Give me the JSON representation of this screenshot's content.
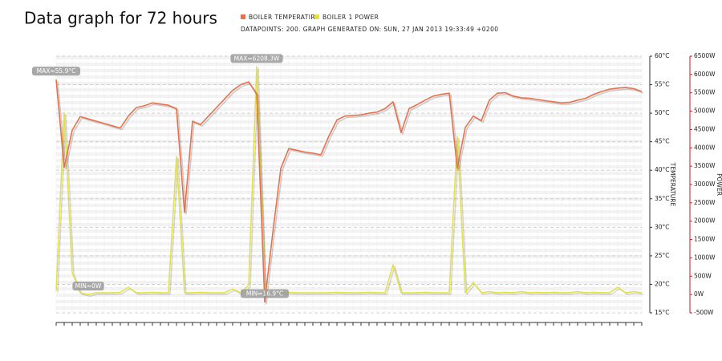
{
  "chart_data": {
    "type": "line",
    "title": "Data graph for 72 hours",
    "subtitle": "DATAPOINTS: 200. GRAPH GENERATED ON: SUN, 27 JAN 2013 19:33:49 +0200",
    "y_label": "TEMPERATURE",
    "y2_label": "POWER",
    "ylim": [
      15,
      60
    ],
    "yticks": [
      {
        "value": 15,
        "label": "15°C"
      },
      {
        "value": 20,
        "label": "20°C"
      },
      {
        "value": 25,
        "label": "25°C"
      },
      {
        "value": 30,
        "label": "30°C"
      },
      {
        "value": 35,
        "label": "35°C"
      },
      {
        "value": 40,
        "label": "40°C"
      },
      {
        "value": 45,
        "label": "45°C"
      },
      {
        "value": 50,
        "label": "50°C"
      },
      {
        "value": 55,
        "label": "55°C"
      },
      {
        "value": 60,
        "label": "60°C"
      }
    ],
    "y2lim": [
      -500,
      6500
    ],
    "y2ticks": [
      {
        "value": -500,
        "label": "-500W"
      },
      {
        "value": 0,
        "label": "0W"
      },
      {
        "value": 500,
        "label": "500W"
      },
      {
        "value": 1000,
        "label": "1000W"
      },
      {
        "value": 1500,
        "label": "1500W"
      },
      {
        "value": 2000,
        "label": "2000W"
      },
      {
        "value": 2500,
        "label": "2500W"
      },
      {
        "value": 3000,
        "label": "3000W"
      },
      {
        "value": 3500,
        "label": "3500W"
      },
      {
        "value": 4000,
        "label": "4000W"
      },
      {
        "value": 4500,
        "label": "4500W"
      },
      {
        "value": 5000,
        "label": "5000W"
      },
      {
        "value": 5500,
        "label": "5500W"
      },
      {
        "value": 6000,
        "label": "6000W"
      },
      {
        "value": 6500,
        "label": "6500W"
      }
    ],
    "grid": true,
    "series": [
      {
        "name": "BOILER TEMPERATIRE",
        "color": "#e8704a",
        "axis": "y",
        "values": [
          55.9,
          40.5,
          47,
          49.4,
          49,
          48.6,
          48.2,
          47.8,
          47.4,
          49.5,
          51,
          51.3,
          51.8,
          51.6,
          51.4,
          50.8,
          32.6,
          48.6,
          48,
          49.5,
          51,
          52.5,
          54,
          55,
          55.5,
          53.3,
          16.9,
          29,
          40.3,
          43.8,
          43.5,
          43.2,
          43,
          42.7,
          46,
          48.8,
          49.5,
          49.6,
          49.7,
          50,
          50.2,
          50.8,
          52,
          46.6,
          50.8,
          51.5,
          52.3,
          53,
          53.3,
          53.5,
          40.3,
          47.5,
          49.5,
          48.7,
          52.3,
          53.5,
          53.6,
          53,
          52.7,
          52.6,
          52.4,
          52.2,
          52,
          51.8,
          51.9,
          52.3,
          52.6,
          53.3,
          53.8,
          54.2,
          54.4,
          54.5,
          54.3,
          53.8
        ]
      },
      {
        "name": "BOILER 1 POWER",
        "color": "#e3e04a",
        "axis": "y2",
        "values": [
          100,
          4950,
          600,
          50,
          0,
          50,
          50,
          50,
          60,
          200,
          50,
          50,
          60,
          50,
          50,
          3760,
          50,
          50,
          60,
          50,
          50,
          50,
          150,
          50,
          250,
          6208.3,
          50,
          50,
          50,
          60,
          50,
          50,
          50,
          50,
          50,
          60,
          50,
          50,
          50,
          60,
          50,
          50,
          810,
          50,
          50,
          50,
          60,
          50,
          50,
          50,
          4300,
          50,
          330,
          50,
          80,
          50,
          60,
          50,
          80,
          50,
          60,
          50,
          60,
          50,
          50,
          80,
          50,
          60,
          50,
          50,
          200,
          50,
          80,
          50
        ]
      }
    ],
    "annotations": [
      {
        "text": "MAX=55.9°C",
        "series": 0,
        "index": 0
      },
      {
        "text": "MAX=6208.3W",
        "series": 1,
        "index": 25
      },
      {
        "text": "MIN=0W",
        "series": 1,
        "index": 4
      },
      {
        "text": "MIN=16.9°C",
        "series": 0,
        "index": 26
      }
    ]
  }
}
